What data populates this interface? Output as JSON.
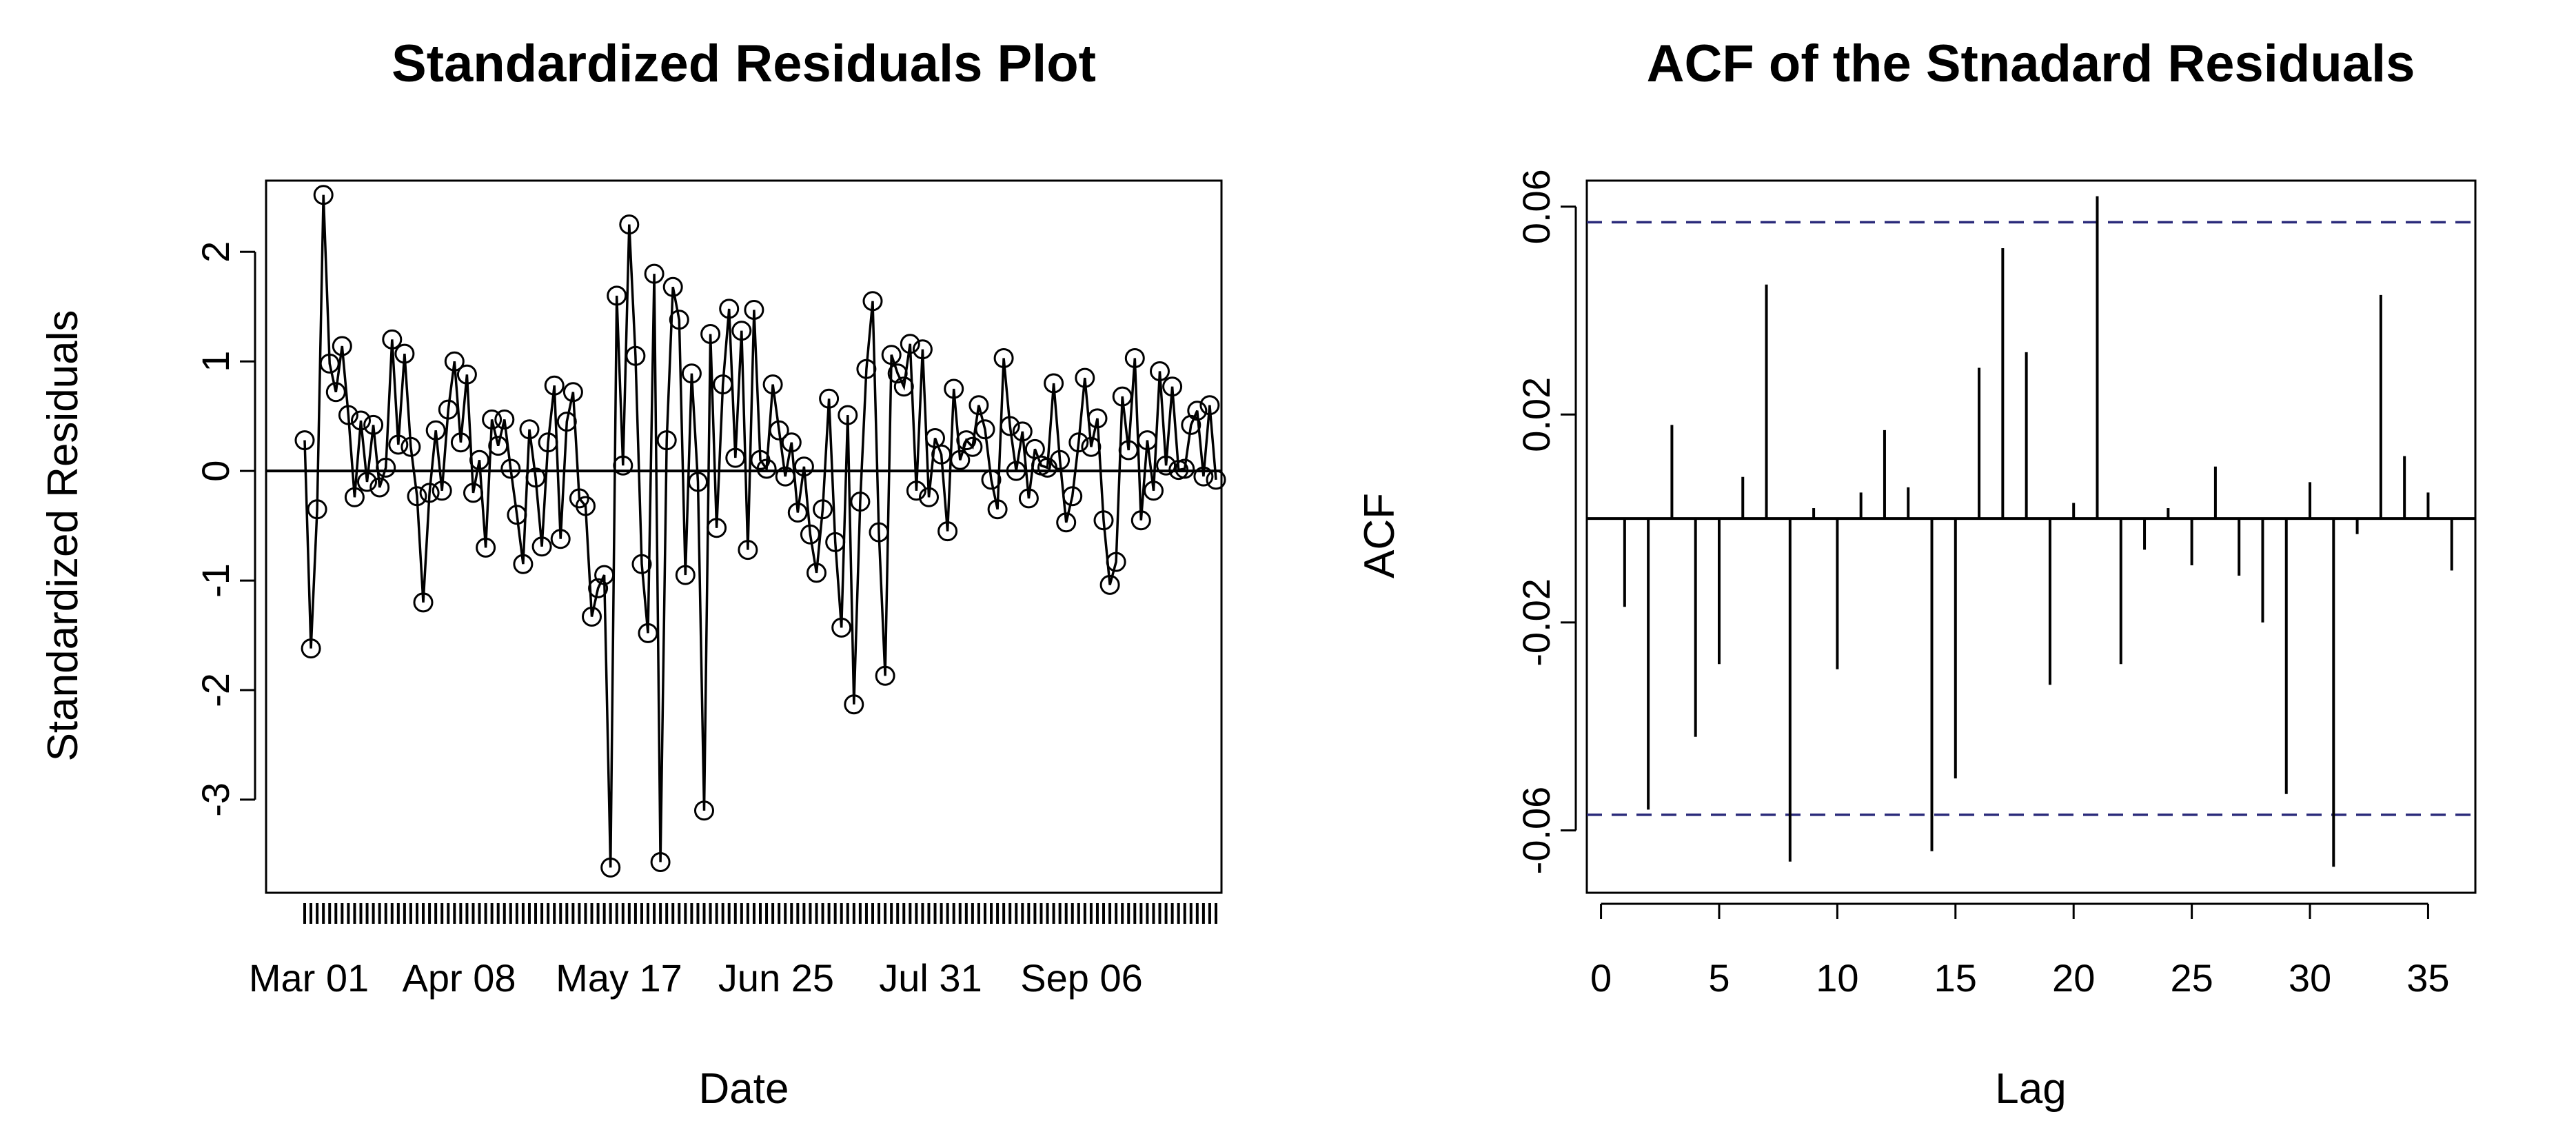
{
  "chart_data": [
    {
      "type": "scatter",
      "title": "Standardized Residuals Plot",
      "xlabel": "Date",
      "ylabel": "Standardized Residuals",
      "x_tick_labels": [
        "Mar 01",
        "Apr 08",
        "May 17",
        "Jun 25",
        "Jul 31",
        "Sep 06"
      ],
      "y_ticks": [
        -3,
        -2,
        -1,
        0,
        1,
        2
      ],
      "ylim": [
        -3.85,
        2.65
      ],
      "reference_line": 0,
      "series": [
        {
          "name": "residuals",
          "values": [
            0.28,
            -1.62,
            -0.35,
            2.52,
            0.98,
            0.72,
            1.14,
            0.51,
            -0.24,
            0.46,
            -0.1,
            0.42,
            -0.15,
            0.03,
            1.2,
            0.24,
            1.07,
            0.22,
            -0.23,
            -1.2,
            -0.2,
            0.37,
            -0.18,
            0.56,
            1.0,
            0.26,
            0.88,
            -0.2,
            0.1,
            -0.7,
            0.47,
            0.23,
            0.47,
            0.02,
            -0.4,
            -0.85,
            0.38,
            -0.06,
            -0.69,
            0.26,
            0.78,
            -0.62,
            0.45,
            0.72,
            -0.25,
            -0.32,
            -1.33,
            -1.07,
            -0.95,
            -3.62,
            1.6,
            0.05,
            2.25,
            1.05,
            -0.85,
            -1.48,
            1.8,
            -3.57,
            0.28,
            1.68,
            1.38,
            -0.95,
            0.89,
            -0.1,
            -3.1,
            1.25,
            -0.52,
            0.79,
            1.48,
            0.12,
            1.28,
            -0.72,
            1.47,
            0.1,
            0.02,
            0.79,
            0.37,
            -0.05,
            0.26,
            -0.38,
            0.04,
            -0.58,
            -0.93,
            -0.35,
            0.66,
            -0.65,
            -1.43,
            0.51,
            -2.13,
            -0.28,
            0.93,
            1.55,
            -0.56,
            -1.87,
            1.06,
            0.89,
            0.77,
            1.16,
            -0.18,
            1.11,
            -0.24,
            0.3,
            0.15,
            -0.55,
            0.75,
            0.1,
            0.28,
            0.22,
            0.6,
            0.38,
            -0.08,
            -0.35,
            1.03,
            0.41,
            0.0,
            0.36,
            -0.25,
            0.2,
            0.05,
            0.03,
            0.8,
            0.1,
            -0.47,
            -0.23,
            0.26,
            0.85,
            0.22,
            0.48,
            -0.45,
            -1.04,
            -0.83,
            0.68,
            0.19,
            1.03,
            -0.45,
            0.28,
            -0.18,
            0.91,
            0.05,
            0.77,
            0.01,
            0.02,
            0.42,
            0.55,
            -0.05,
            0.6,
            -0.08
          ]
        }
      ]
    },
    {
      "type": "bar",
      "title": "ACF of the Stnadard Residuals",
      "xlabel": "Lag",
      "ylabel": "ACF",
      "x_ticks": [
        0,
        5,
        10,
        15,
        20,
        25,
        30,
        35
      ],
      "y_ticks": [
        -0.06,
        -0.02,
        0.02,
        0.06
      ],
      "y_tick_labels": [
        "-0.06",
        "-0.02",
        "0.02",
        "0.06"
      ],
      "xlim": [
        -0.6,
        37.0
      ],
      "ylim": [
        -0.072,
        0.065
      ],
      "confidence_bounds": [
        0.057,
        -0.057
      ],
      "lags": [
        1,
        2,
        3,
        4,
        5,
        6,
        7,
        8,
        9,
        10,
        11,
        12,
        13,
        14,
        15,
        16,
        17,
        18,
        19,
        20,
        21,
        22,
        23,
        24,
        25,
        26,
        27,
        28,
        29,
        30,
        31,
        32,
        33,
        34,
        35,
        36
      ],
      "values": [
        -0.017,
        -0.056,
        0.018,
        -0.042,
        -0.028,
        0.008,
        0.045,
        -0.066,
        0.002,
        -0.029,
        0.005,
        0.017,
        0.006,
        -0.064,
        -0.05,
        0.029,
        0.052,
        0.032,
        -0.032,
        0.003,
        0.062,
        -0.028,
        -0.006,
        0.002,
        -0.009,
        0.01,
        -0.011,
        -0.02,
        -0.053,
        0.007,
        -0.067,
        -0.003,
        0.043,
        0.012,
        0.005,
        -0.01
      ]
    }
  ]
}
